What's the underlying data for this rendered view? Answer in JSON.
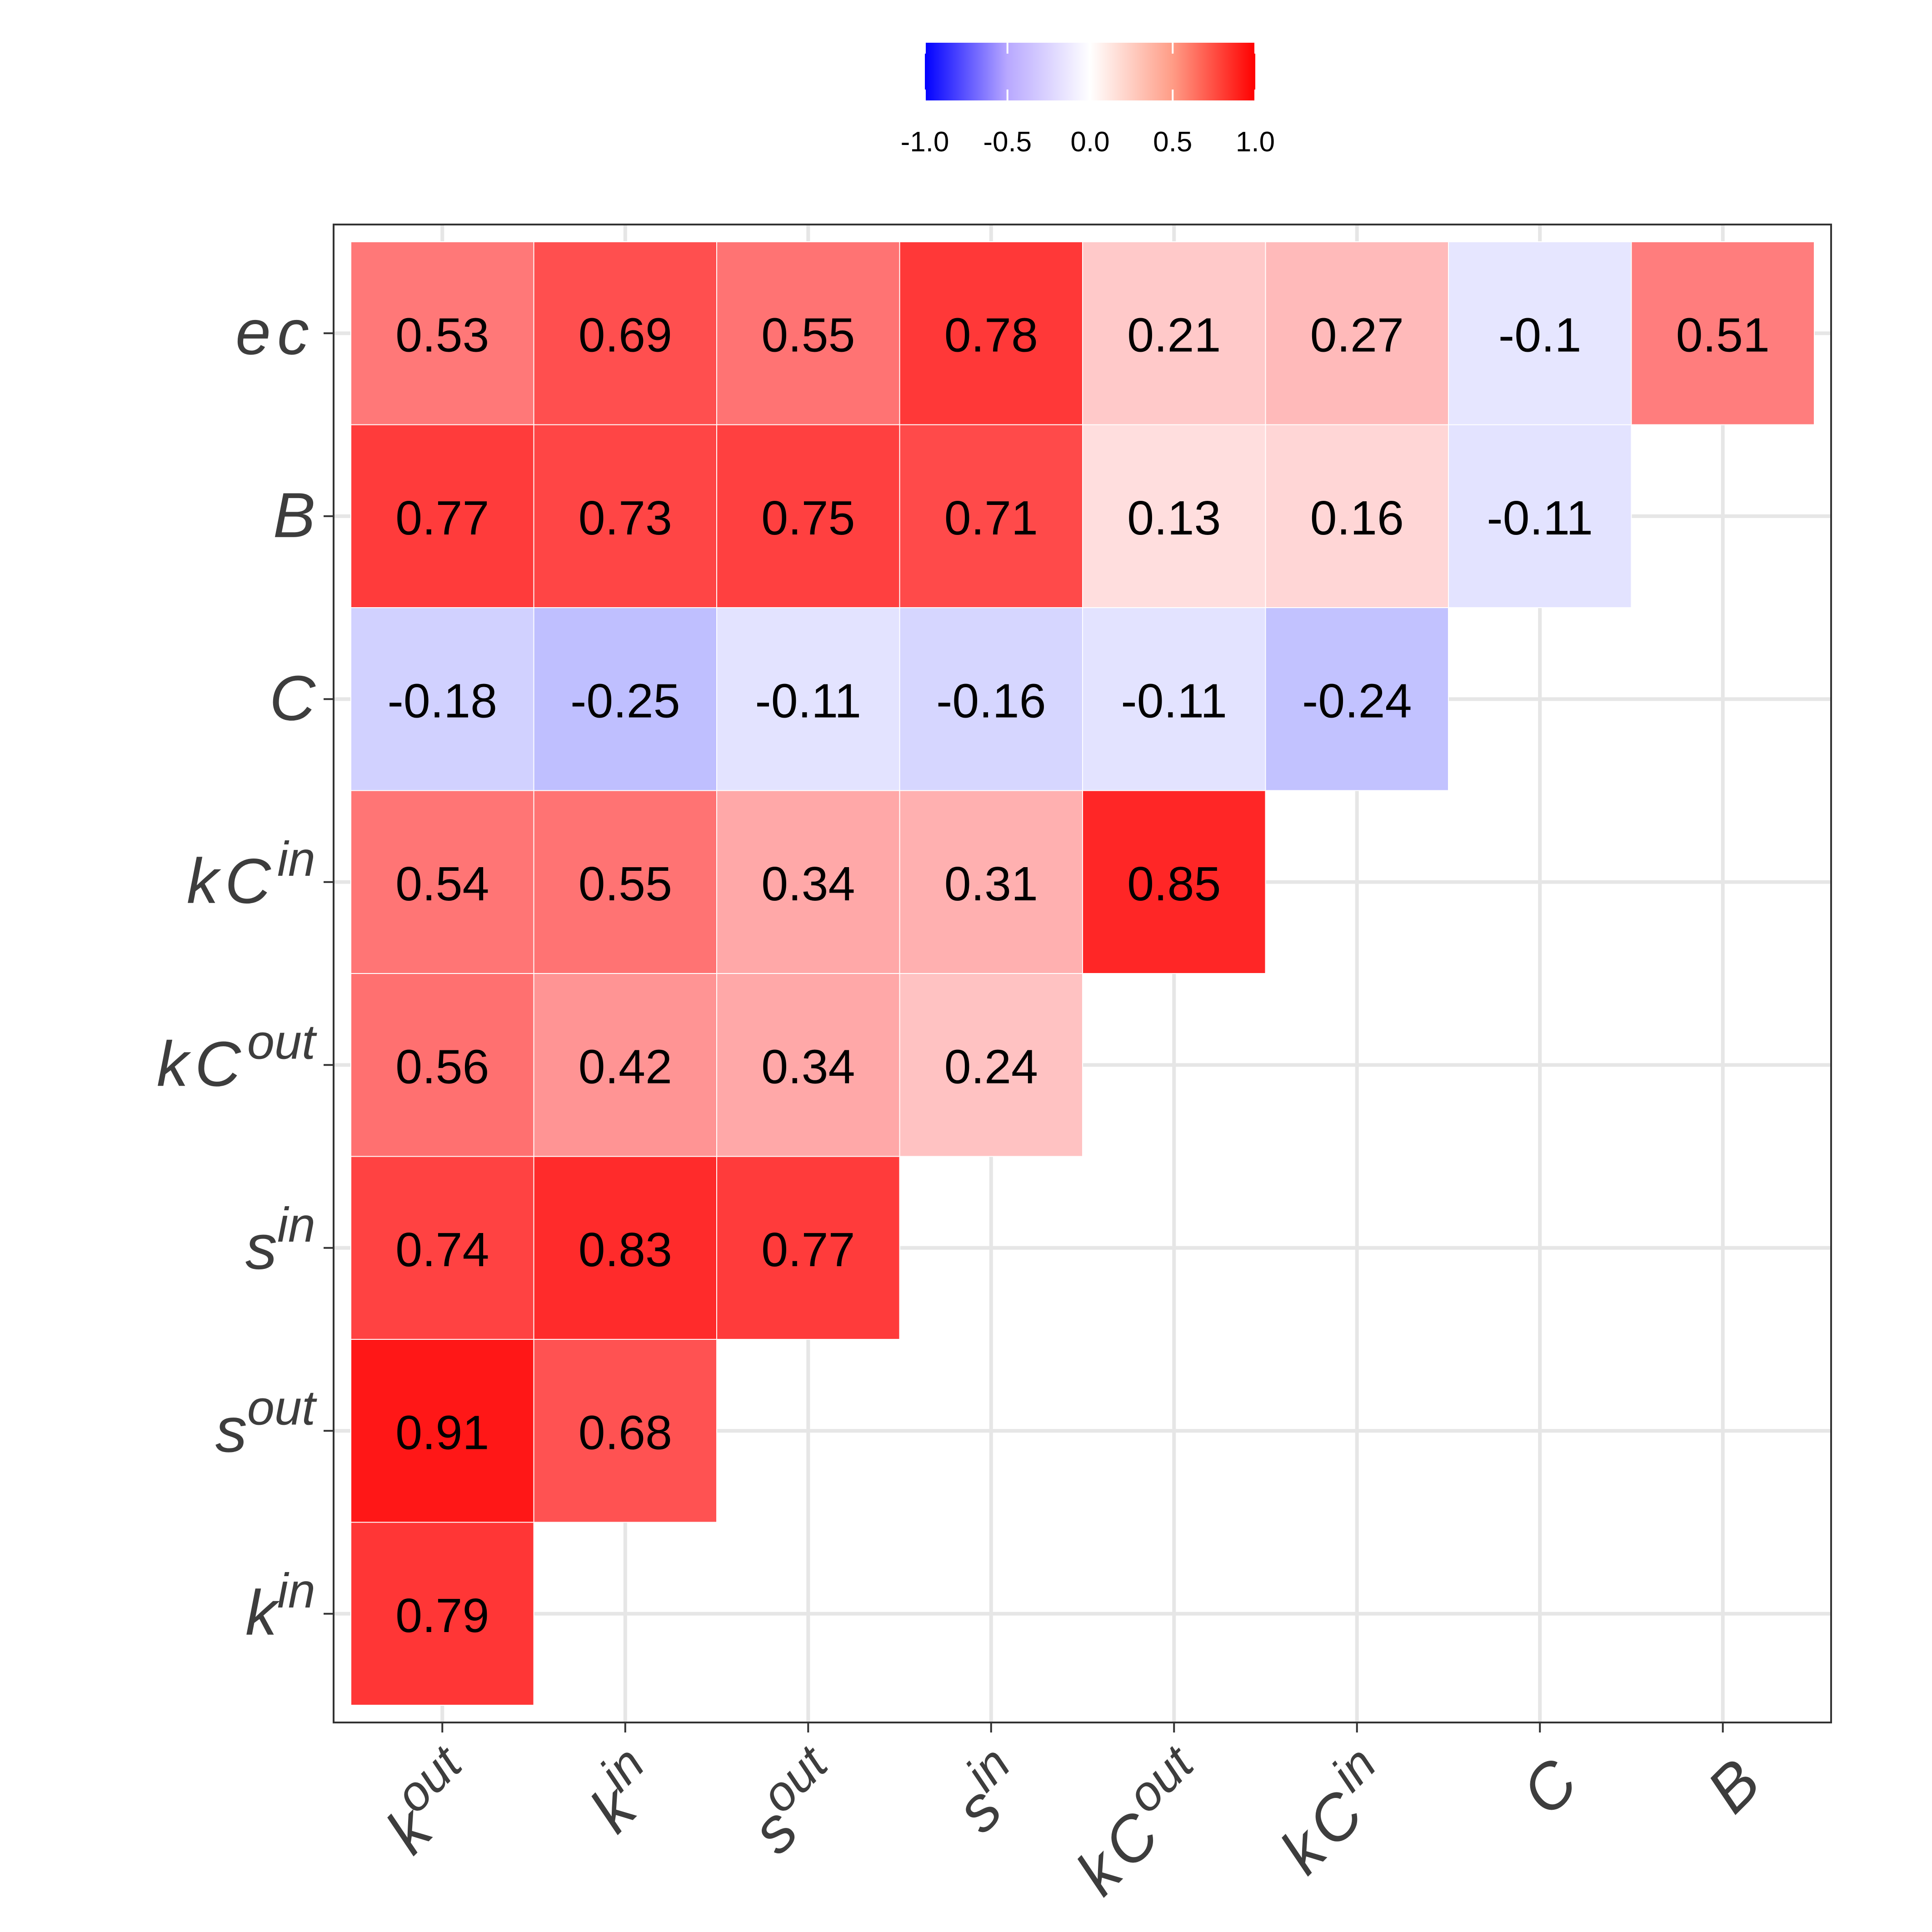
{
  "chart_data": {
    "type": "heatmap",
    "title": "",
    "xlabel": "",
    "ylabel": "",
    "colorscale": {
      "low": "#0000FF",
      "mid": "#FFFFFF",
      "high": "#FF0000",
      "range": [
        -1.0,
        1.0
      ],
      "ticks": [
        "-1.0",
        "-0.5",
        "0.0",
        "0.5",
        "1.0"
      ],
      "tick_values": [
        -1.0,
        -0.5,
        0.0,
        0.5,
        1.0
      ],
      "position": "top"
    },
    "x_labels": [
      {
        "base": "k",
        "sup": "out"
      },
      {
        "base": "k",
        "sup": "in"
      },
      {
        "base": "s",
        "sup": "out"
      },
      {
        "base": "s",
        "sup": "in"
      },
      {
        "base": "kC",
        "sup": "out"
      },
      {
        "base": "kC",
        "sup": "in"
      },
      {
        "base": "C",
        "sup": ""
      },
      {
        "base": "B",
        "sup": ""
      }
    ],
    "y_labels": [
      {
        "base": "ec",
        "sup": ""
      },
      {
        "base": "B",
        "sup": ""
      },
      {
        "base": "C",
        "sup": ""
      },
      {
        "base": "kC",
        "sup": "in"
      },
      {
        "base": "kC",
        "sup": "out"
      },
      {
        "base": "s",
        "sup": "in"
      },
      {
        "base": "s",
        "sup": "out"
      },
      {
        "base": "k",
        "sup": "in"
      }
    ],
    "values": [
      [
        0.53,
        0.69,
        0.55,
        0.78,
        0.21,
        0.27,
        -0.1,
        0.51
      ],
      [
        0.77,
        0.73,
        0.75,
        0.71,
        0.13,
        0.16,
        -0.11,
        null
      ],
      [
        -0.18,
        -0.25,
        -0.11,
        -0.16,
        -0.11,
        -0.24,
        null,
        null
      ],
      [
        0.54,
        0.55,
        0.34,
        0.31,
        0.85,
        null,
        null,
        null
      ],
      [
        0.56,
        0.42,
        0.34,
        0.24,
        null,
        null,
        null,
        null
      ],
      [
        0.74,
        0.83,
        0.77,
        null,
        null,
        null,
        null,
        null
      ],
      [
        0.91,
        0.68,
        null,
        null,
        null,
        null,
        null,
        null
      ],
      [
        0.79,
        null,
        null,
        null,
        null,
        null,
        null,
        null
      ]
    ],
    "labels": [
      [
        "0.53",
        "0.69",
        "0.55",
        "0.78",
        "0.21",
        "0.27",
        "-0.1",
        "0.51"
      ],
      [
        "0.77",
        "0.73",
        "0.75",
        "0.71",
        "0.13",
        "0.16",
        "-0.11"
      ],
      [
        "-0.18",
        "-0.25",
        "-0.11",
        "-0.16",
        "-0.11",
        "-0.24"
      ],
      [
        "0.54",
        "0.55",
        "0.34",
        "0.31",
        "0.85"
      ],
      [
        "0.56",
        "0.42",
        "0.34",
        "0.24"
      ],
      [
        "0.74",
        "0.83",
        "0.77"
      ],
      [
        "0.91",
        "0.68"
      ],
      [
        "0.79"
      ]
    ],
    "grid": true,
    "legend": "top-center"
  }
}
